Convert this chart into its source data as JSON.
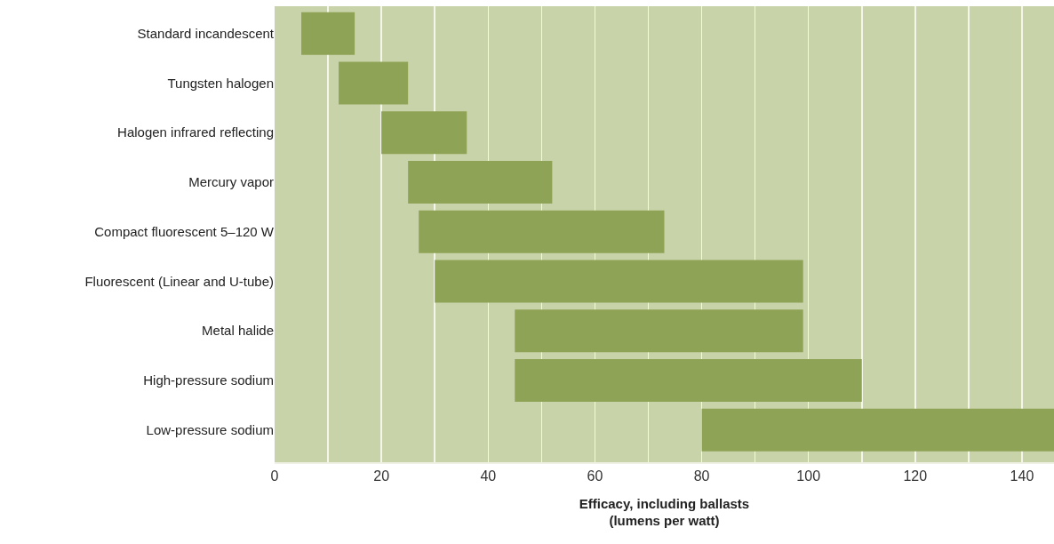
{
  "chart_data": {
    "type": "bar",
    "orientation": "horizontal",
    "xlabel": "Efficacy, including ballasts\n(lumens per watt)",
    "categories": [
      "Standard incandescent",
      "Tungsten halogen",
      "Halogen infrared reflecting",
      "Mercury vapor",
      "Compact fluorescent 5–120 W",
      "Fluorescent (Linear and U-tube)",
      "Metal halide",
      "High-pressure sodium",
      "Low-pressure sodium"
    ],
    "base": [
      5,
      12,
      20,
      25,
      27,
      30,
      45,
      45,
      80
    ],
    "values": [
      10,
      13,
      16,
      27,
      46,
      69,
      54,
      65,
      66
    ],
    "color": "#8fa356",
    "xlim": [
      0,
      146
    ],
    "xticks": [
      0,
      {
        "value": 10,
        "label": null
      },
      20,
      {
        "value": 30,
        "label": null
      },
      40,
      {
        "value": 50,
        "label": null
      },
      60,
      {
        "value": 70,
        "label": null
      },
      80,
      {
        "value": 90,
        "label": null
      },
      100,
      {
        "value": 110,
        "label": null
      },
      120,
      {
        "value": 130,
        "label": null
      },
      140
    ],
    "grid": "x",
    "legend": false
  }
}
